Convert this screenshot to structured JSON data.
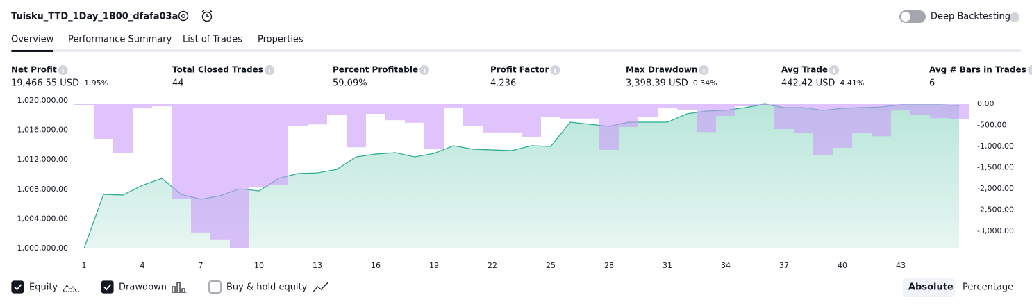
{
  "header": {
    "title": "Tuisku_TTD_1Day_1B00_dfafa03a",
    "deep_backtesting": "Deep Backtesting"
  },
  "tabs": [
    "Overview",
    "Performance Summary",
    "List of Trades",
    "Properties"
  ],
  "metrics": [
    {
      "label": "Net Profit",
      "value": "19,466.55 USD",
      "percent": "1.95%",
      "color": "#089981"
    },
    {
      "label": "Total Closed Trades",
      "value": "44",
      "color": "#131722"
    },
    {
      "label": "Percent Profitable",
      "value": "59.09%",
      "color": "#089981"
    },
    {
      "label": "Profit Factor",
      "value": "4.236",
      "color": "#089981"
    },
    {
      "label": "Max Drawdown",
      "value": "3,398.39 USD",
      "percent": "0.34%",
      "color": "#f23645"
    },
    {
      "label": "Avg Trade",
      "value": "442.42 USD",
      "percent": "4.41%",
      "color": "#089981"
    },
    {
      "label": "Avg # Bars in Trades",
      "value": "6",
      "color": "#131722"
    }
  ],
  "chart_data": {
    "type": "line",
    "x": [
      1,
      2,
      3,
      4,
      5,
      6,
      7,
      8,
      9,
      10,
      11,
      12,
      13,
      14,
      15,
      16,
      17,
      18,
      19,
      20,
      21,
      22,
      23,
      24,
      25,
      26,
      27,
      28,
      29,
      30,
      31,
      32,
      33,
      34,
      35,
      36,
      37,
      38,
      39,
      40,
      41,
      42,
      43,
      44,
      45,
      46
    ],
    "xlim": [
      0.5,
      46.5
    ],
    "xticks": [
      1,
      4,
      7,
      10,
      13,
      16,
      19,
      22,
      25,
      28,
      31,
      34,
      37,
      40,
      43
    ],
    "ylim": [
      1000000,
      1020000
    ],
    "yticks": [
      {
        "value": 1000000,
        "label": "1,000,000.00"
      },
      {
        "value": 1004000,
        "label": "1,004,000.00"
      },
      {
        "value": 1008000,
        "label": "1,008,000.00"
      },
      {
        "value": 1012000,
        "label": "1,012,000.00"
      },
      {
        "value": 1016000,
        "label": "1,016,000.00"
      },
      {
        "value": 1020000,
        "label": "1,020,000.00"
      }
    ],
    "y2lim": [
      -3410,
      82
    ],
    "y2ticks": [
      {
        "value": 0,
        "label": "0.00"
      },
      {
        "value": -500,
        "label": "-500.00"
      },
      {
        "value": -1000,
        "label": "-1,000.00"
      },
      {
        "value": -1500,
        "label": "-1,500.00"
      },
      {
        "value": -2000,
        "label": "-2,000.00"
      },
      {
        "value": -2500,
        "label": "-2,500.00"
      },
      {
        "value": -3000,
        "label": "-3,000.00"
      }
    ],
    "series": [
      {
        "name": "Equity",
        "type": "area",
        "axis": "y",
        "color": "#22ab94",
        "values": [
          1000000,
          1007320,
          1007230,
          1008540,
          1009480,
          1007320,
          1006670,
          1007140,
          1008080,
          1007790,
          1009480,
          1010140,
          1010230,
          1010700,
          1012390,
          1012770,
          1012960,
          1012390,
          1012860,
          1013900,
          1013430,
          1013330,
          1013240,
          1013900,
          1013800,
          1017090,
          1016810,
          1016530,
          1017090,
          1017090,
          1017090,
          1018220,
          1018590,
          1018690,
          1019060,
          1019530,
          1019060,
          1019060,
          1018690,
          1018970,
          1019060,
          1019150,
          1019440,
          1019440,
          1019440,
          1019340
        ]
      },
      {
        "name": "Drawdown",
        "type": "bar",
        "axis": "y2",
        "color": "#cc9bfa",
        "values": [
          -20,
          -820,
          -1150,
          -100,
          -50,
          -2230,
          -3030,
          -3210,
          -3398,
          -1970,
          -1900,
          -520,
          -480,
          -250,
          -1020,
          -230,
          -380,
          -440,
          -1050,
          -80,
          -520,
          -670,
          -670,
          -770,
          -310,
          -340,
          -340,
          -1080,
          -540,
          -300,
          -100,
          -130,
          -660,
          -280,
          -50,
          -20,
          -590,
          -690,
          -1200,
          -1030,
          -690,
          -760,
          -150,
          -260,
          -330,
          -345
        ]
      }
    ]
  },
  "controls": {
    "buy_hold": "Buy & hold equity",
    "scale": [
      "Absolute",
      "Percentage"
    ]
  }
}
